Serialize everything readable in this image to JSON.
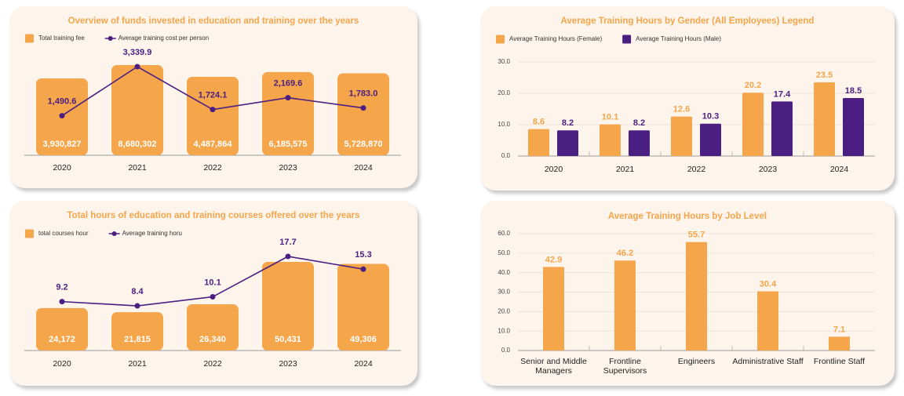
{
  "chart_data": [
    {
      "type": "bar",
      "title": "Overview of funds invested in education and training over the years",
      "categories": [
        "2020",
        "2021",
        "2022",
        "2023",
        "2024"
      ],
      "series": [
        {
          "name": "Total training fee",
          "color": "#f5a54a",
          "values": [
            3930827,
            8680302,
            4487864,
            6185575,
            5728870
          ],
          "value_labels": [
            "3,930,827",
            "8,680,302",
            "4,487,864",
            "6,185,575",
            "5,728,870"
          ]
        },
        {
          "name": "Average training cost per person",
          "type": "line",
          "color": "#4b1e82",
          "values": [
            1490.6,
            3339.9,
            1724.1,
            2169.6,
            1783.0
          ],
          "value_labels": [
            "1,490.6",
            "3,339.9",
            "1,724.1",
            "2,169.6",
            "1,783.0"
          ]
        }
      ]
    },
    {
      "type": "bar",
      "title": "Total hours of education and training courses offered over the years",
      "categories": [
        "2020",
        "2021",
        "2022",
        "2023",
        "2024"
      ],
      "series": [
        {
          "name": "total courses hour",
          "color": "#f5a54a",
          "values": [
            24172,
            21815,
            26340,
            50431,
            49306
          ],
          "value_labels": [
            "24,172",
            "21,815",
            "26,340",
            "50,431",
            "49,306"
          ]
        },
        {
          "name": "Average training horu",
          "type": "line",
          "color": "#4b1e82",
          "values": [
            9.2,
            8.4,
            10.1,
            17.7,
            15.3
          ]
        }
      ]
    },
    {
      "type": "bar",
      "title": "Average Training Hours by Gender (All Employees) Legend",
      "categories": [
        "2020",
        "2021",
        "2022",
        "2023",
        "2024"
      ],
      "series": [
        {
          "name": "Average Training Hours (Female)",
          "color": "#f5a54a",
          "values": [
            8.6,
            10.1,
            12.6,
            20.2,
            23.5
          ]
        },
        {
          "name": "Average Training Hours (Male)",
          "color": "#4b1e82",
          "values": [
            8.2,
            8.2,
            10.3,
            17.4,
            18.5
          ]
        }
      ],
      "ylim": [
        0,
        30
      ],
      "yticks": [
        {
          "value": 0,
          "label": "0.0"
        },
        {
          "value": 10,
          "label": "10.0"
        },
        {
          "value": 20,
          "label": "20.0"
        },
        {
          "value": 30,
          "label": "30.0"
        }
      ],
      "grid": true
    },
    {
      "type": "bar",
      "title": "Average Training Hours by Job Level",
      "categories": [
        "Senior and Middle Managers",
        "Frontline Supervisors",
        "Engineers",
        "Administrative Staff",
        "Frontline Staff"
      ],
      "values": [
        42.9,
        46.2,
        55.7,
        30.4,
        7.1
      ],
      "color": "#f5a54a",
      "ylim": [
        0,
        60
      ],
      "yticks": [
        {
          "value": 0,
          "label": "0.0"
        },
        {
          "value": 10,
          "label": "10.0"
        },
        {
          "value": 20,
          "label": "20.0"
        },
        {
          "value": 30,
          "label": "30.0"
        },
        {
          "value": 40,
          "label": "40.0"
        },
        {
          "value": 50,
          "label": "50.0"
        },
        {
          "value": 60,
          "label": "60.0"
        }
      ],
      "grid": true
    }
  ]
}
